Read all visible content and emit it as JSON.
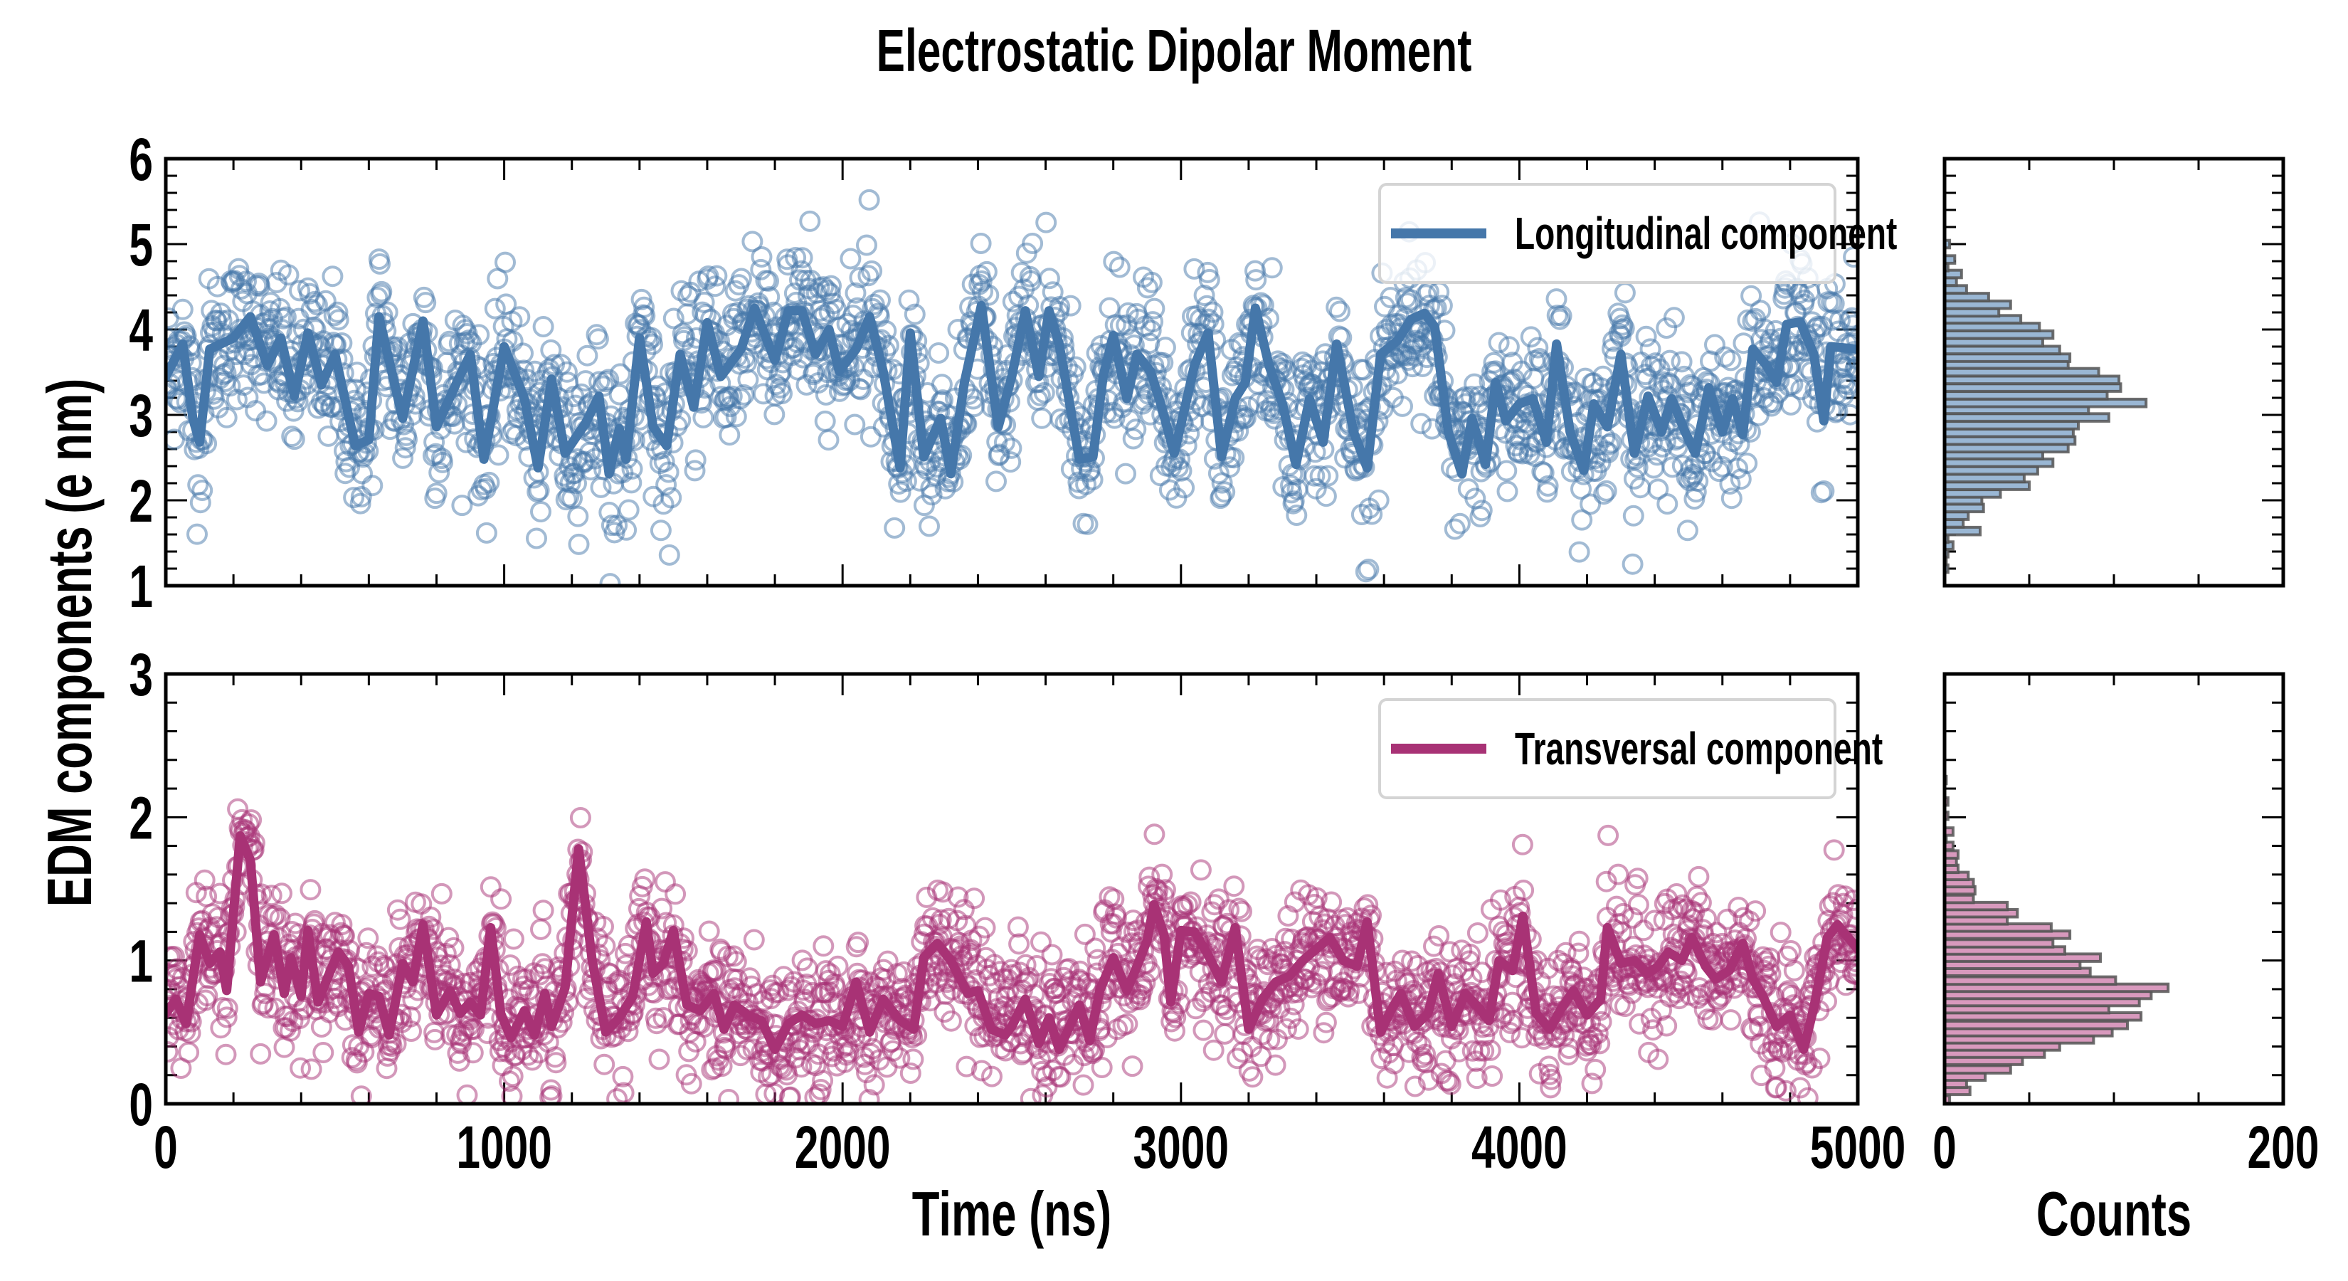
{
  "figure": {
    "title": "Electrostatic Dipolar Moment",
    "ylabel": "EDM components (e nm)",
    "xlabel": "Time (ns)",
    "hist_xlabel": "Counts"
  },
  "chart_data": [
    {
      "id": "longitudinal-timeseries",
      "type": "line",
      "title": "",
      "xlabel": "Time (ns)",
      "ylabel": "EDM components (e nm)",
      "xlim": [
        0,
        5000
      ],
      "ylim": [
        1,
        6
      ],
      "xticks": [
        0,
        1000,
        2000,
        3000,
        4000,
        5000
      ],
      "xtick_labels": [
        "0",
        "1000",
        "2000",
        "3000",
        "4000",
        "5000"
      ],
      "yticks": [
        1,
        2,
        3,
        4,
        5,
        6
      ],
      "ytick_labels": [
        "1",
        "2",
        "3",
        "4",
        "5",
        "6"
      ],
      "x_minor_step": 200,
      "y_minor_step": 0.2,
      "legend": {
        "label": "Longitudinal component",
        "position": "upper right"
      },
      "color": "#4577aa",
      "series": [
        {
          "name": "Longitudinal component (running mean)",
          "kind": "line",
          "x": [
            0,
            50,
            80,
            100,
            130,
            200,
            250,
            300,
            340,
            380,
            420,
            460,
            500,
            560,
            600,
            630,
            700,
            760,
            800,
            860,
            900,
            940,
            1000,
            1060,
            1100,
            1140,
            1180,
            1240,
            1280,
            1310,
            1340,
            1360,
            1400,
            1440,
            1480,
            1520,
            1560,
            1600,
            1640,
            1700,
            1740,
            1800,
            1840,
            1880,
            1920,
            1960,
            1990,
            2040,
            2080,
            2120,
            2170,
            2200,
            2240,
            2290,
            2320,
            2360,
            2410,
            2460,
            2500,
            2540,
            2580,
            2610,
            2640,
            2700,
            2740,
            2770,
            2800,
            2840,
            2870,
            2910,
            2940,
            2980,
            3010,
            3040,
            3080,
            3120,
            3160,
            3190,
            3220,
            3260,
            3300,
            3340,
            3380,
            3420,
            3460,
            3510,
            3550,
            3590,
            3640,
            3680,
            3720,
            3750,
            3790,
            3830,
            3860,
            3900,
            3930,
            3960,
            4000,
            4040,
            4080,
            4110,
            4150,
            4190,
            4220,
            4260,
            4300,
            4340,
            4380,
            4420,
            4450,
            4490,
            4520,
            4560,
            4600,
            4630,
            4660,
            4690,
            4730,
            4760,
            4790,
            4830,
            4870,
            4900,
            4920,
            5000
          ],
          "y": [
            3.45,
            3.83,
            2.96,
            2.68,
            3.77,
            3.9,
            4.15,
            3.58,
            3.9,
            3.22,
            3.96,
            3.35,
            3.71,
            2.64,
            2.71,
            4.15,
            2.96,
            4.1,
            2.86,
            3.38,
            3.71,
            2.48,
            3.8,
            3.19,
            2.38,
            3.42,
            2.55,
            2.9,
            3.22,
            2.31,
            2.84,
            2.48,
            3.9,
            2.86,
            2.64,
            3.71,
            3.09,
            4.08,
            3.45,
            3.77,
            4.25,
            3.64,
            4.22,
            4.22,
            3.71,
            4.0,
            3.51,
            3.77,
            4.15,
            3.51,
            2.38,
            3.96,
            2.51,
            2.96,
            2.31,
            3.38,
            4.28,
            2.86,
            3.45,
            4.22,
            3.45,
            4.22,
            3.83,
            2.48,
            2.51,
            3.45,
            3.93,
            3.19,
            3.71,
            3.51,
            3.13,
            2.55,
            3.06,
            3.58,
            3.96,
            2.51,
            3.19,
            3.38,
            4.25,
            3.58,
            3.13,
            2.42,
            3.19,
            2.68,
            3.83,
            2.8,
            2.38,
            3.71,
            3.87,
            4.12,
            4.19,
            4.03,
            2.8,
            2.31,
            2.96,
            2.42,
            3.38,
            2.93,
            3.13,
            3.19,
            2.68,
            3.83,
            2.8,
            2.35,
            3.13,
            2.86,
            3.71,
            2.55,
            3.22,
            2.8,
            3.19,
            2.8,
            2.55,
            3.32,
            2.8,
            3.19,
            2.77,
            3.77,
            3.58,
            3.38,
            4.06,
            4.09,
            3.71,
            2.93,
            3.8,
            3.77
          ]
        },
        {
          "name": "Longitudinal component (samples)",
          "kind": "scatter",
          "marker": "open-circle",
          "n_points": 2000,
          "spread_sd": 0.45
        }
      ]
    },
    {
      "id": "longitudinal-histogram",
      "type": "bar",
      "orientation": "horizontal",
      "xlabel": "",
      "xlim": [
        0,
        200
      ],
      "ylim": [
        1,
        6
      ],
      "color": "#9ab7d4",
      "edgecolor": "#555555",
      "bin_width": 0.0887,
      "bin_centers": [
        1.2,
        1.29,
        1.38,
        1.47,
        1.55,
        1.64,
        1.73,
        1.82,
        1.91,
        2.0,
        2.08,
        2.17,
        2.26,
        2.35,
        2.44,
        2.53,
        2.61,
        2.7,
        2.79,
        2.88,
        2.97,
        3.06,
        3.14,
        3.23,
        3.32,
        3.41,
        3.5,
        3.59,
        3.67,
        3.76,
        3.85,
        3.94,
        4.03,
        4.12,
        4.2,
        4.29,
        4.38,
        4.47,
        4.56,
        4.65,
        4.73,
        4.82,
        5.0
      ],
      "counts": [
        2,
        1,
        2,
        5,
        2,
        21,
        11,
        14,
        23,
        22,
        33,
        50,
        47,
        55,
        64,
        58,
        73,
        77,
        76,
        79,
        97,
        85,
        119,
        96,
        104,
        103,
        91,
        73,
        74,
        68,
        58,
        64,
        56,
        45,
        32,
        39,
        26,
        13,
        7,
        10,
        2,
        6,
        3
      ]
    },
    {
      "id": "transversal-timeseries",
      "type": "line",
      "title": "",
      "xlabel": "Time (ns)",
      "ylabel": "EDM components (e nm)",
      "xlim": [
        0,
        5000
      ],
      "ylim": [
        0,
        3
      ],
      "xticks": [
        0,
        1000,
        2000,
        3000,
        4000,
        5000
      ],
      "xtick_labels": [
        "0",
        "1000",
        "2000",
        "3000",
        "4000",
        "5000"
      ],
      "yticks": [
        0,
        1,
        2,
        3
      ],
      "ytick_labels": [
        "0",
        "1",
        "2",
        "3"
      ],
      "x_minor_step": 200,
      "y_minor_step": 0.2,
      "legend": {
        "label": "Transversal component",
        "position": "upper right"
      },
      "color": "#a83275",
      "series": [
        {
          "name": "Transversal component (running mean)",
          "kind": "line",
          "x": [
            0,
            30,
            60,
            100,
            130,
            160,
            180,
            220,
            250,
            280,
            320,
            350,
            370,
            400,
            420,
            450,
            480,
            510,
            540,
            570,
            600,
            630,
            660,
            700,
            730,
            760,
            800,
            840,
            870,
            900,
            930,
            960,
            990,
            1020,
            1060,
            1090,
            1120,
            1140,
            1180,
            1220,
            1260,
            1300,
            1340,
            1380,
            1420,
            1440,
            1470,
            1500,
            1540,
            1580,
            1620,
            1650,
            1680,
            1720,
            1760,
            1800,
            1840,
            1880,
            1920,
            1960,
            2000,
            2040,
            2080,
            2120,
            2170,
            2210,
            2240,
            2280,
            2320,
            2370,
            2400,
            2440,
            2480,
            2500,
            2540,
            2580,
            2610,
            2640,
            2700,
            2730,
            2760,
            2800,
            2840,
            2870,
            2900,
            2920,
            2950,
            2970,
            3000,
            3040,
            3080,
            3120,
            3160,
            3200,
            3240,
            3280,
            3320,
            3360,
            3400,
            3440,
            3480,
            3520,
            3550,
            3590,
            3620,
            3650,
            3690,
            3730,
            3760,
            3800,
            3840,
            3880,
            3910,
            3940,
            3980,
            4010,
            4050,
            4090,
            4120,
            4160,
            4200,
            4240,
            4260,
            4300,
            4340,
            4380,
            4410,
            4440,
            4480,
            4510,
            4550,
            4580,
            4620,
            4660,
            4690,
            4720,
            4760,
            4800,
            4840,
            4870,
            4910,
            4940,
            5000
          ],
          "y": [
            0.63,
            0.73,
            0.56,
            1.18,
            0.98,
            1.06,
            0.79,
            1.87,
            1.7,
            0.85,
            1.18,
            0.77,
            1.02,
            0.75,
            1.21,
            0.71,
            0.89,
            1.06,
            0.96,
            0.5,
            0.77,
            0.75,
            0.48,
            0.98,
            0.85,
            1.25,
            0.62,
            0.79,
            0.63,
            0.71,
            0.62,
            1.23,
            0.63,
            0.46,
            0.65,
            0.48,
            0.77,
            0.54,
            0.81,
            1.78,
            1.0,
            0.5,
            0.6,
            0.75,
            1.27,
            0.91,
            0.98,
            1.21,
            0.69,
            0.65,
            0.77,
            0.52,
            0.69,
            0.62,
            0.58,
            0.38,
            0.56,
            0.62,
            0.56,
            0.58,
            0.54,
            0.85,
            0.5,
            0.73,
            0.58,
            0.52,
            1.02,
            1.12,
            1.0,
            0.77,
            0.79,
            0.52,
            0.48,
            0.54,
            0.73,
            0.42,
            0.6,
            0.38,
            0.69,
            0.44,
            0.79,
            1.02,
            0.79,
            0.96,
            1.14,
            1.39,
            1.18,
            0.71,
            1.21,
            1.2,
            1.04,
            0.85,
            1.23,
            0.52,
            0.73,
            0.85,
            0.89,
            1.0,
            1.08,
            1.16,
            1.0,
            0.96,
            1.27,
            0.5,
            0.65,
            0.77,
            0.54,
            0.63,
            0.91,
            0.54,
            0.77,
            0.67,
            0.58,
            1.0,
            0.93,
            1.31,
            0.63,
            0.52,
            0.65,
            0.79,
            0.62,
            0.73,
            1.23,
            0.98,
            1.0,
            0.91,
            0.96,
            1.06,
            1.0,
            1.16,
            0.96,
            0.87,
            0.93,
            1.12,
            0.87,
            0.75,
            0.54,
            0.62,
            0.38,
            0.67,
            1.16,
            1.25,
            1.08
          ]
        },
        {
          "name": "Transversal component (samples)",
          "kind": "scatter",
          "marker": "open-circle",
          "n_points": 2000,
          "spread_sd": 0.24
        }
      ]
    },
    {
      "id": "transversal-histogram",
      "type": "bar",
      "orientation": "horizontal",
      "xlabel": "Counts",
      "xlim": [
        0,
        200
      ],
      "xticks": [
        0,
        200
      ],
      "xtick_labels": [
        "0",
        "200"
      ],
      "x_minor_step": 50,
      "ylim": [
        0,
        3
      ],
      "color": "#d899bd",
      "edgecolor": "#555555",
      "bin_width": 0.052,
      "bin_centers": [
        0.03,
        0.09,
        0.14,
        0.19,
        0.24,
        0.3,
        0.35,
        0.4,
        0.45,
        0.5,
        0.55,
        0.61,
        0.66,
        0.71,
        0.76,
        0.81,
        0.86,
        0.92,
        0.97,
        1.02,
        1.07,
        1.12,
        1.18,
        1.23,
        1.28,
        1.33,
        1.38,
        1.43,
        1.49,
        1.54,
        1.59,
        1.64,
        1.69,
        1.74,
        1.8,
        1.85,
        1.9,
        2.01,
        2.11,
        2.26
      ],
      "counts": [
        3,
        15,
        13,
        24,
        39,
        46,
        59,
        68,
        88,
        99,
        108,
        116,
        97,
        115,
        122,
        132,
        101,
        86,
        80,
        92,
        71,
        64,
        74,
        63,
        37,
        43,
        37,
        17,
        18,
        17,
        14,
        8,
        7,
        8,
        5,
        1,
        5,
        2,
        2,
        1
      ]
    }
  ]
}
